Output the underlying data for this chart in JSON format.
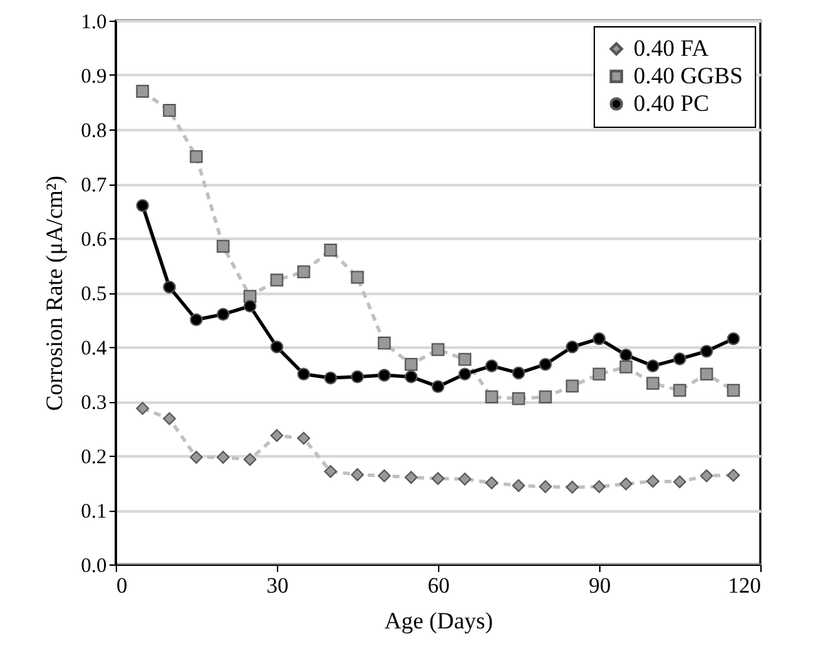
{
  "chart_data": {
    "type": "line",
    "xlabel": "Age (Days)",
    "ylabel": "Corrosion Rate (μA/cm²)",
    "x": [
      5,
      10,
      15,
      20,
      25,
      30,
      35,
      40,
      45,
      50,
      55,
      60,
      65,
      70,
      75,
      80,
      85,
      90,
      95,
      100,
      105,
      110,
      115
    ],
    "series": [
      {
        "name": "0.40 FA",
        "color": "#c0c0c0",
        "marker": "diamond",
        "line_style": "dashed",
        "values": [
          0.287,
          0.268,
          0.197,
          0.197,
          0.193,
          0.237,
          0.232,
          0.171,
          0.165,
          0.163,
          0.16,
          0.158,
          0.157,
          0.15,
          0.145,
          0.143,
          0.142,
          0.143,
          0.148,
          0.153,
          0.152,
          0.163,
          0.164
        ]
      },
      {
        "name": "0.40 GGBS",
        "color": "#c0c0c0",
        "marker": "square",
        "line_style": "dashed",
        "values": [
          0.87,
          0.835,
          0.75,
          0.585,
          0.493,
          0.523,
          0.538,
          0.578,
          0.528,
          0.407,
          0.368,
          0.395,
          0.377,
          0.308,
          0.305,
          0.308,
          0.328,
          0.35,
          0.363,
          0.333,
          0.32,
          0.35,
          0.32
        ]
      },
      {
        "name": "0.40 PC",
        "color": "#000000",
        "marker": "circle",
        "line_style": "solid",
        "values": [
          0.66,
          0.51,
          0.45,
          0.46,
          0.475,
          0.4,
          0.35,
          0.343,
          0.345,
          0.348,
          0.345,
          0.327,
          0.35,
          0.365,
          0.352,
          0.368,
          0.4,
          0.415,
          0.385,
          0.365,
          0.378,
          0.392,
          0.415
        ]
      }
    ],
    "xlim": [
      0,
      120
    ],
    "xticks": [
      0,
      30,
      60,
      90,
      120
    ],
    "ylim": [
      0,
      1
    ],
    "yticks": [
      {
        "value": 0,
        "label": "0.0"
      },
      0.1,
      0.2,
      0.3,
      0.4,
      0.5,
      0.6,
      0.7,
      0.8,
      0.9,
      {
        "value": 1,
        "label": "1.0"
      }
    ],
    "grid": "y",
    "legend": "top right"
  }
}
